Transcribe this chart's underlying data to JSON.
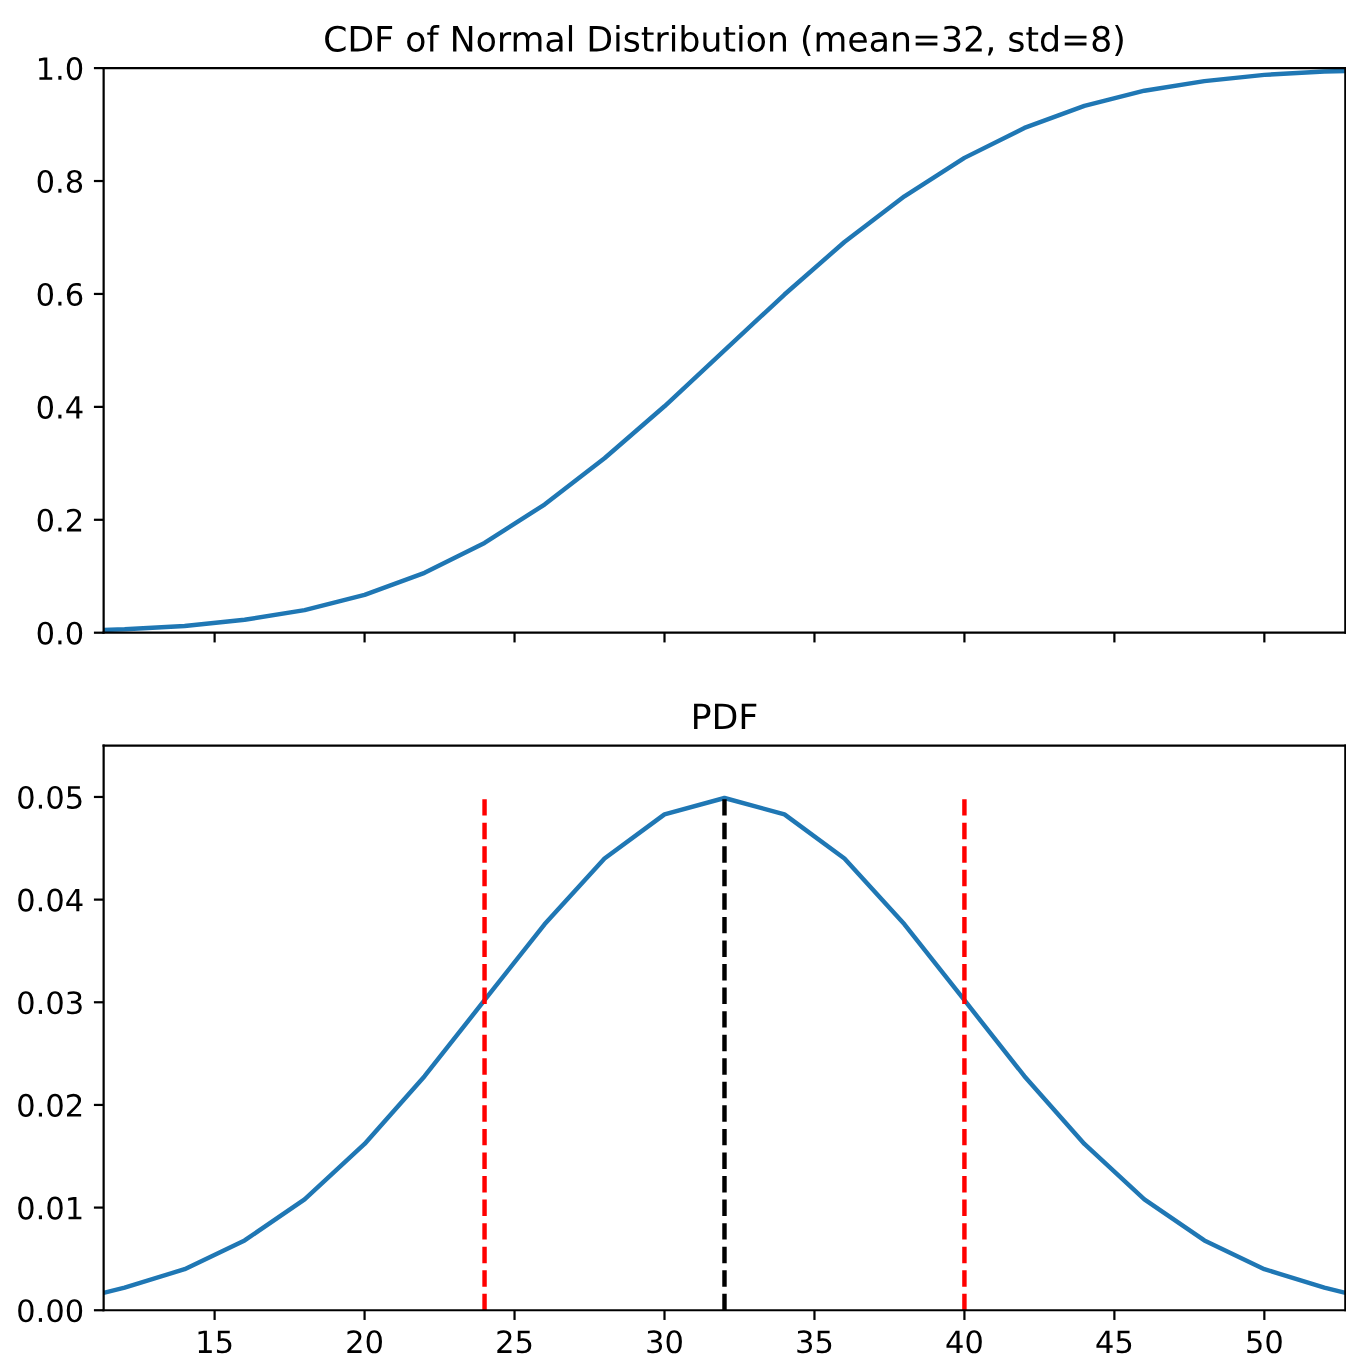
{
  "chart_data": [
    {
      "type": "line",
      "title": "CDF of Normal Distribution (mean=32, std=8)",
      "xlim": [
        11.3,
        52.7
      ],
      "ylim": [
        0,
        1.0
      ],
      "xticks": [
        15,
        20,
        25,
        30,
        35,
        40,
        45,
        50
      ],
      "yticks": [
        {
          "value": 0,
          "label": "0.0"
        },
        {
          "value": 0.2,
          "label": "0.2"
        },
        {
          "value": 0.4,
          "label": "0.4"
        },
        {
          "value": 0.6,
          "label": "0.6"
        },
        {
          "value": 0.8,
          "label": "0.8"
        },
        {
          "value": 1.0,
          "label": "1.0"
        }
      ],
      "tick_labels": "y",
      "grid": false,
      "legend": false,
      "series": [
        {
          "color": "#1f77b4",
          "x": [
            11.3,
            12,
            14,
            16,
            18,
            20,
            22,
            24,
            26,
            28,
            30,
            32,
            34,
            36,
            38,
            40,
            42,
            44,
            46,
            48,
            50,
            52,
            52.7
          ],
          "values": [
            0.005,
            0.006,
            0.012,
            0.023,
            0.04,
            0.067,
            0.106,
            0.159,
            0.227,
            0.309,
            0.401,
            0.5,
            0.599,
            0.692,
            0.773,
            0.841,
            0.894,
            0.933,
            0.96,
            0.977,
            0.988,
            0.994,
            0.995
          ]
        }
      ]
    },
    {
      "type": "line",
      "title": "PDF",
      "xlim": [
        11.3,
        52.7
      ],
      "ylim": [
        0,
        0.055
      ],
      "xticks": [
        15,
        20,
        25,
        30,
        35,
        40,
        45,
        50
      ],
      "yticks": [
        {
          "value": 0,
          "label": "0.00"
        },
        {
          "value": 0.01,
          "label": "0.01"
        },
        {
          "value": 0.02,
          "label": "0.02"
        },
        {
          "value": 0.03,
          "label": "0.03"
        },
        {
          "value": 0.04,
          "label": "0.04"
        },
        {
          "value": 0.05,
          "label": "0.05"
        }
      ],
      "grid": false,
      "legend": false,
      "series": [
        {
          "color": "#1f77b4",
          "x": [
            11.3,
            12,
            14,
            16,
            18,
            20,
            22,
            24,
            26,
            28,
            30,
            32,
            34,
            36,
            38,
            40,
            42,
            44,
            46,
            48,
            50,
            52,
            52.7
          ],
          "values": [
            0.0017,
            0.0022,
            0.004,
            0.0068,
            0.0108,
            0.0162,
            0.0228,
            0.0302,
            0.0376,
            0.044,
            0.0483,
            0.0499,
            0.0483,
            0.044,
            0.0376,
            0.0302,
            0.0228,
            0.0162,
            0.0108,
            0.0068,
            0.004,
            0.0022,
            0.0017
          ]
        },
        {
          "color": "#ff0000",
          "line_style": "dashed",
          "x": [
            24,
            24
          ],
          "values": [
            0,
            0.05
          ]
        },
        {
          "color": "#000000",
          "line_style": "dashed",
          "x": [
            32,
            32
          ],
          "values": [
            0,
            0.05
          ]
        },
        {
          "color": "#ff0000",
          "line_style": "dashed",
          "x": [
            40,
            40
          ],
          "values": [
            0,
            0.05
          ]
        }
      ]
    }
  ]
}
